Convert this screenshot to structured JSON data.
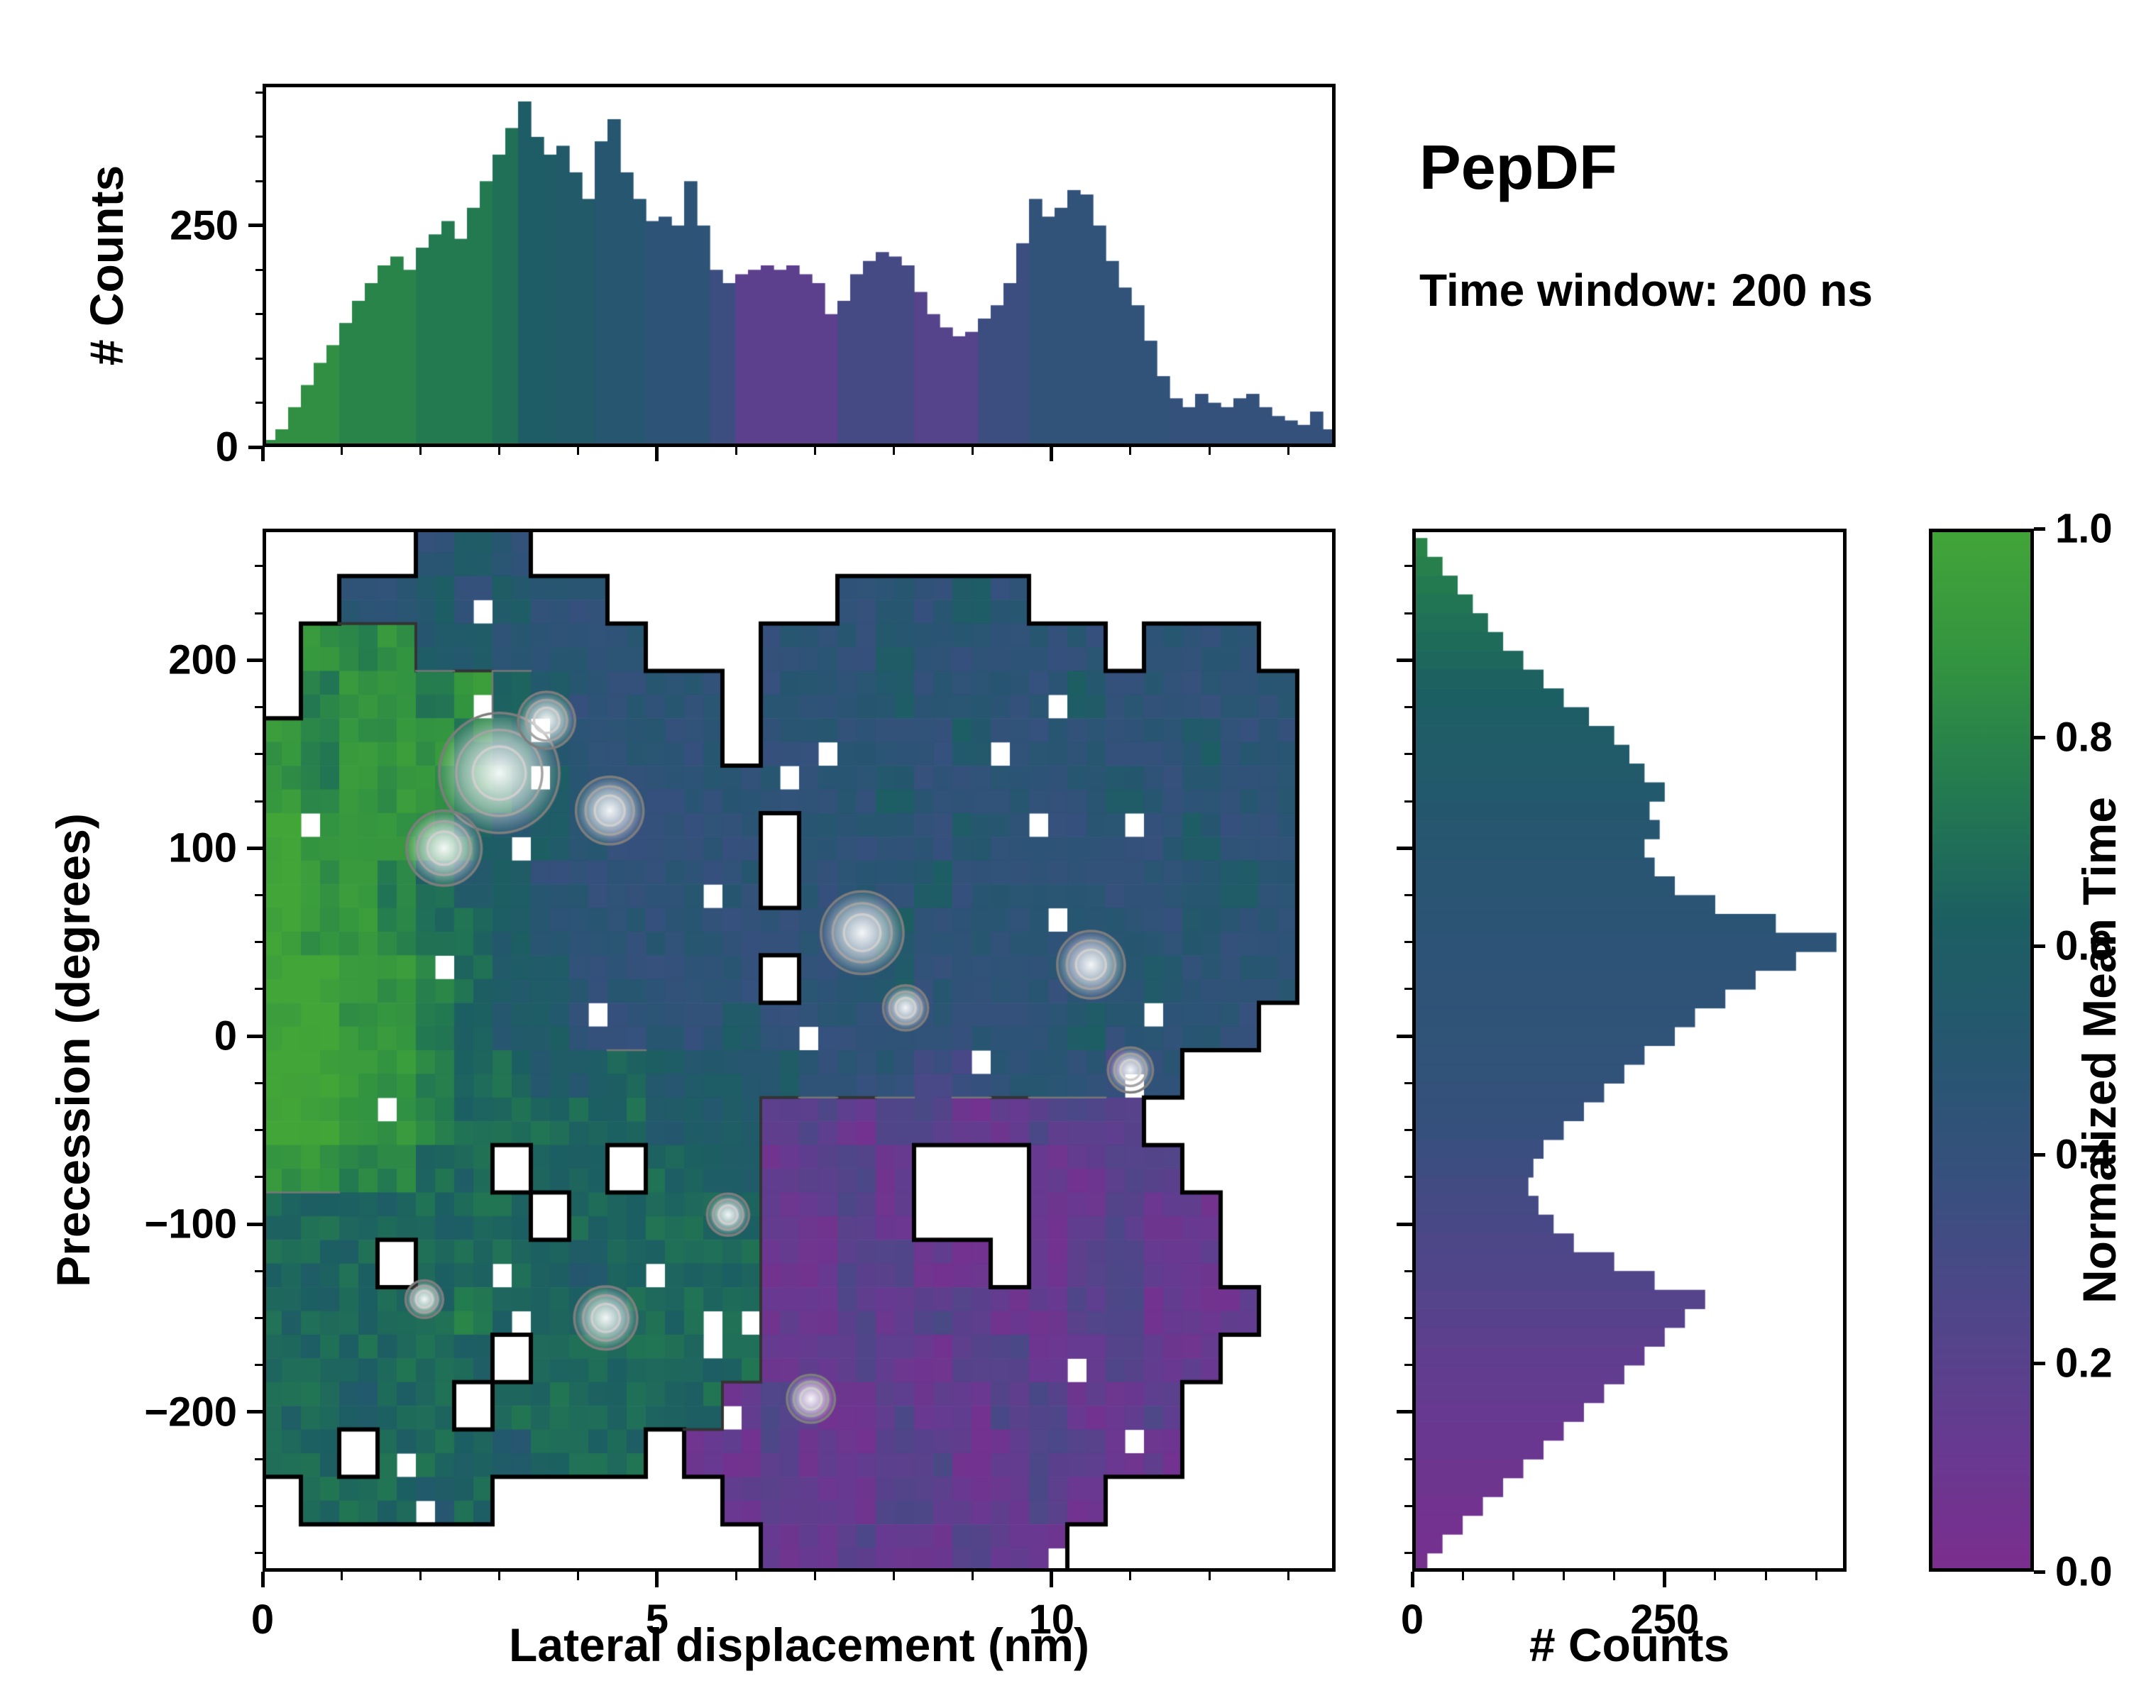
{
  "annotations": {
    "title": "PepDF",
    "subtitle": "Time window: 200 ns"
  },
  "colormap": {
    "label": "Normalized Mean Time",
    "ticks": [
      "1.0",
      "0.8",
      "0.6",
      "0.4",
      "0.2",
      "0.0"
    ],
    "tick_values": [
      1.0,
      0.8,
      0.6,
      0.4,
      0.2,
      0.0
    ],
    "stops": [
      [
        0,
        "#7b2d8e"
      ],
      [
        0.125,
        "#663a90"
      ],
      [
        0.25,
        "#4f4689"
      ],
      [
        0.375,
        "#37507e"
      ],
      [
        0.5,
        "#265670"
      ],
      [
        0.625,
        "#1c5f62"
      ],
      [
        0.75,
        "#237a50"
      ],
      [
        0.875,
        "#339440"
      ],
      [
        1,
        "#42a538"
      ]
    ]
  },
  "chart_data": [
    {
      "id": "top-histogram",
      "type": "bar",
      "ylabel": "# Counts",
      "xlim": [
        0,
        13.6
      ],
      "ylim": [
        0,
        410
      ],
      "xticks": {
        "values": [
          0,
          5,
          10
        ],
        "labels": [
          "0",
          "5",
          "10"
        ]
      },
      "yticks": {
        "values": [
          0,
          250
        ],
        "labels": [
          "0",
          "250"
        ]
      },
      "bin_start": 0,
      "bin_width": 0.1619,
      "color_meaning": "Normalized Mean Time",
      "heights": [
        8,
        20,
        45,
        70,
        95,
        115,
        140,
        165,
        185,
        205,
        215,
        200,
        225,
        240,
        255,
        235,
        270,
        300,
        330,
        360,
        390,
        350,
        330,
        340,
        310,
        280,
        345,
        370,
        310,
        280,
        255,
        260,
        250,
        300,
        250,
        200,
        185,
        195,
        200,
        205,
        200,
        205,
        195,
        185,
        150,
        165,
        195,
        210,
        220,
        215,
        205,
        175,
        150,
        135,
        125,
        130,
        145,
        160,
        185,
        230,
        280,
        260,
        270,
        290,
        285,
        250,
        210,
        180,
        160,
        120,
        80,
        55,
        45,
        60,
        50,
        45,
        55,
        60,
        45,
        35,
        30,
        25,
        40,
        20
      ],
      "cvals": [
        0.85,
        0.85,
        0.85,
        0.85,
        0.85,
        0.85,
        0.8,
        0.8,
        0.8,
        0.8,
        0.8,
        0.8,
        0.75,
        0.75,
        0.75,
        0.75,
        0.75,
        0.75,
        0.7,
        0.7,
        0.6,
        0.6,
        0.6,
        0.55,
        0.55,
        0.55,
        0.5,
        0.5,
        0.5,
        0.5,
        0.45,
        0.45,
        0.45,
        0.45,
        0.45,
        0.35,
        0.35,
        0.18,
        0.18,
        0.18,
        0.18,
        0.18,
        0.18,
        0.18,
        0.18,
        0.3,
        0.3,
        0.3,
        0.3,
        0.3,
        0.3,
        0.22,
        0.22,
        0.22,
        0.22,
        0.22,
        0.35,
        0.35,
        0.35,
        0.35,
        0.42,
        0.42,
        0.42,
        0.42,
        0.42,
        0.42,
        0.42,
        0.42,
        0.42,
        0.42,
        0.42,
        0.4,
        0.4,
        0.4,
        0.4,
        0.4,
        0.4,
        0.4,
        0.4,
        0.4,
        0.4,
        0.4,
        0.4,
        0.4
      ]
    },
    {
      "id": "main-heatmap",
      "type": "heatmap",
      "xlabel": "Lateral displacement (nm)",
      "ylabel": "Precession (degrees)",
      "value_label": "Normalized Mean Time",
      "xlim": [
        0,
        13.6
      ],
      "ylim": [
        -285,
        270
      ],
      "xticks": {
        "values": [
          0,
          5,
          10
        ],
        "labels": [
          "0",
          "5",
          "10"
        ]
      },
      "yticks": {
        "values": [
          200,
          100,
          0,
          -100,
          -200
        ],
        "labels": [
          "200",
          "100",
          "0",
          "−100",
          "−200"
        ]
      },
      "grid": {
        "cols": 28,
        "rows": 22,
        "x0": 0,
        "dx": 0.4857,
        "y_top": 270,
        "dy": 25,
        "encoding": "segments per row: [startCol, digits]; digit d -> normalized mean time d/9; missing = empty (white)",
        "segments": [
          [
            [
              4,
              "454"
            ]
          ],
          [
            [
              2,
              "4454544"
            ],
            [
              15,
              "44454"
            ]
          ],
          [
            [
              1,
              "878554444"
            ],
            [
              13,
              "444544444"
            ],
            [
              23,
              "444"
            ]
          ],
          [
            [
              1,
              "78878654444"
            ],
            [
              13,
              "44454444544444"
            ]
          ],
          [
            [
              0,
              "878887654444"
            ],
            [
              13,
              "44444544444544"
            ]
          ],
          [
            [
              0,
              "8788876544444"
            ],
            [
              13,
              "44454444454444"
            ]
          ],
          [
            [
              0,
              "9888765544444"
            ],
            [
              14,
              "4444544444544"
            ]
          ],
          [
            [
              0,
              "9887655444444"
            ],
            [
              14,
              "4445444444454"
            ]
          ],
          [
            [
              0,
              "9887665444444"
            ],
            [
              13,
              "44454444444544"
            ]
          ],
          [
            [
              0,
              "9988765544444"
            ],
            [
              14,
              "4454444445444"
            ]
          ],
          [
            [
              0,
              "99887655444454"
            ],
            [
              14,
              "444444454444"
            ]
          ],
          [
            [
              0,
              "99887665"
            ],
            [
              8,
              "565555"
            ],
            [
              14,
              "4443344434"
            ]
          ],
          [
            [
              0,
              "9988766"
            ],
            [
              7,
              "666555"
            ],
            [
              13,
              "2212211222"
            ]
          ],
          [
            [
              0,
              "887766"
            ],
            [
              7,
              "66"
            ],
            [
              10,
              "665"
            ],
            [
              13,
              "1221"
            ],
            [
              20,
              "1122"
            ]
          ],
          [
            [
              0,
              "6666666"
            ],
            [
              8,
              "66666"
            ],
            [
              13,
              "1121"
            ],
            [
              20,
              "11211"
            ]
          ],
          [
            [
              0,
              "666"
            ],
            [
              4,
              "666656666"
            ],
            [
              13,
              "112211"
            ],
            [
              20,
              "12211"
            ]
          ],
          [
            [
              0,
              "6666676666666"
            ],
            [
              13,
              "1121221122111"
            ]
          ],
          [
            [
              0,
              "666666"
            ],
            [
              7,
              "666666"
            ],
            [
              13,
              "112112211211"
            ]
          ],
          [
            [
              0,
              "66566"
            ],
            [
              6,
              "666666"
            ],
            [
              12,
              "121121122112"
            ]
          ],
          [
            [
              0,
              "66"
            ],
            [
              3,
              "6665666"
            ],
            [
              11,
              "1121122112211"
            ]
          ],
          [
            [
              1,
              "66656"
            ],
            [
              12,
              "1211221121"
            ]
          ],
          [
            [
              13,
              "11211211"
            ]
          ]
        ]
      },
      "peaks": [
        {
          "x": 3.0,
          "y": 140,
          "r": 0.8
        },
        {
          "x": 2.3,
          "y": 100,
          "r": 0.5
        },
        {
          "x": 4.4,
          "y": 120,
          "r": 0.45
        },
        {
          "x": 3.6,
          "y": 168,
          "r": 0.38
        },
        {
          "x": 7.6,
          "y": 55,
          "r": 0.55
        },
        {
          "x": 8.15,
          "y": 15,
          "r": 0.3
        },
        {
          "x": 10.5,
          "y": 38,
          "r": 0.45
        },
        {
          "x": 11.0,
          "y": -18,
          "r": 0.3
        },
        {
          "x": 4.35,
          "y": -150,
          "r": 0.42
        },
        {
          "x": 6.95,
          "y": -193,
          "r": 0.32
        },
        {
          "x": 5.9,
          "y": -95,
          "r": 0.28
        },
        {
          "x": 2.05,
          "y": -140,
          "r": 0.25
        }
      ]
    },
    {
      "id": "right-histogram",
      "type": "bar",
      "orientation": "horizontal",
      "xlabel": "# Counts",
      "xlim": [
        0,
        430
      ],
      "xticks": {
        "values": [
          0,
          250
        ],
        "labels": [
          "0",
          "250"
        ]
      },
      "ylim": [
        -285,
        270
      ],
      "bin_center_start": 260,
      "bin_step": -10,
      "color_meaning": "Normalized Mean Time",
      "heights": [
        15,
        30,
        45,
        60,
        75,
        90,
        110,
        130,
        150,
        175,
        200,
        215,
        230,
        250,
        235,
        245,
        230,
        240,
        260,
        300,
        360,
        420,
        380,
        340,
        310,
        280,
        260,
        230,
        210,
        190,
        170,
        150,
        130,
        120,
        115,
        125,
        140,
        160,
        200,
        240,
        290,
        270,
        250,
        230,
        210,
        190,
        170,
        150,
        130,
        110,
        90,
        70,
        50,
        30,
        15
      ],
      "cvals": [
        0.8,
        0.78,
        0.75,
        0.72,
        0.7,
        0.68,
        0.66,
        0.64,
        0.62,
        0.6,
        0.58,
        0.56,
        0.55,
        0.54,
        0.52,
        0.5,
        0.5,
        0.48,
        0.48,
        0.46,
        0.46,
        0.45,
        0.45,
        0.44,
        0.44,
        0.44,
        0.43,
        0.42,
        0.42,
        0.4,
        0.4,
        0.38,
        0.36,
        0.34,
        0.32,
        0.3,
        0.28,
        0.26,
        0.25,
        0.24,
        0.22,
        0.2,
        0.18,
        0.16,
        0.15,
        0.14,
        0.12,
        0.1,
        0.1,
        0.08,
        0.08,
        0.06,
        0.05,
        0.04,
        0.03
      ]
    }
  ]
}
